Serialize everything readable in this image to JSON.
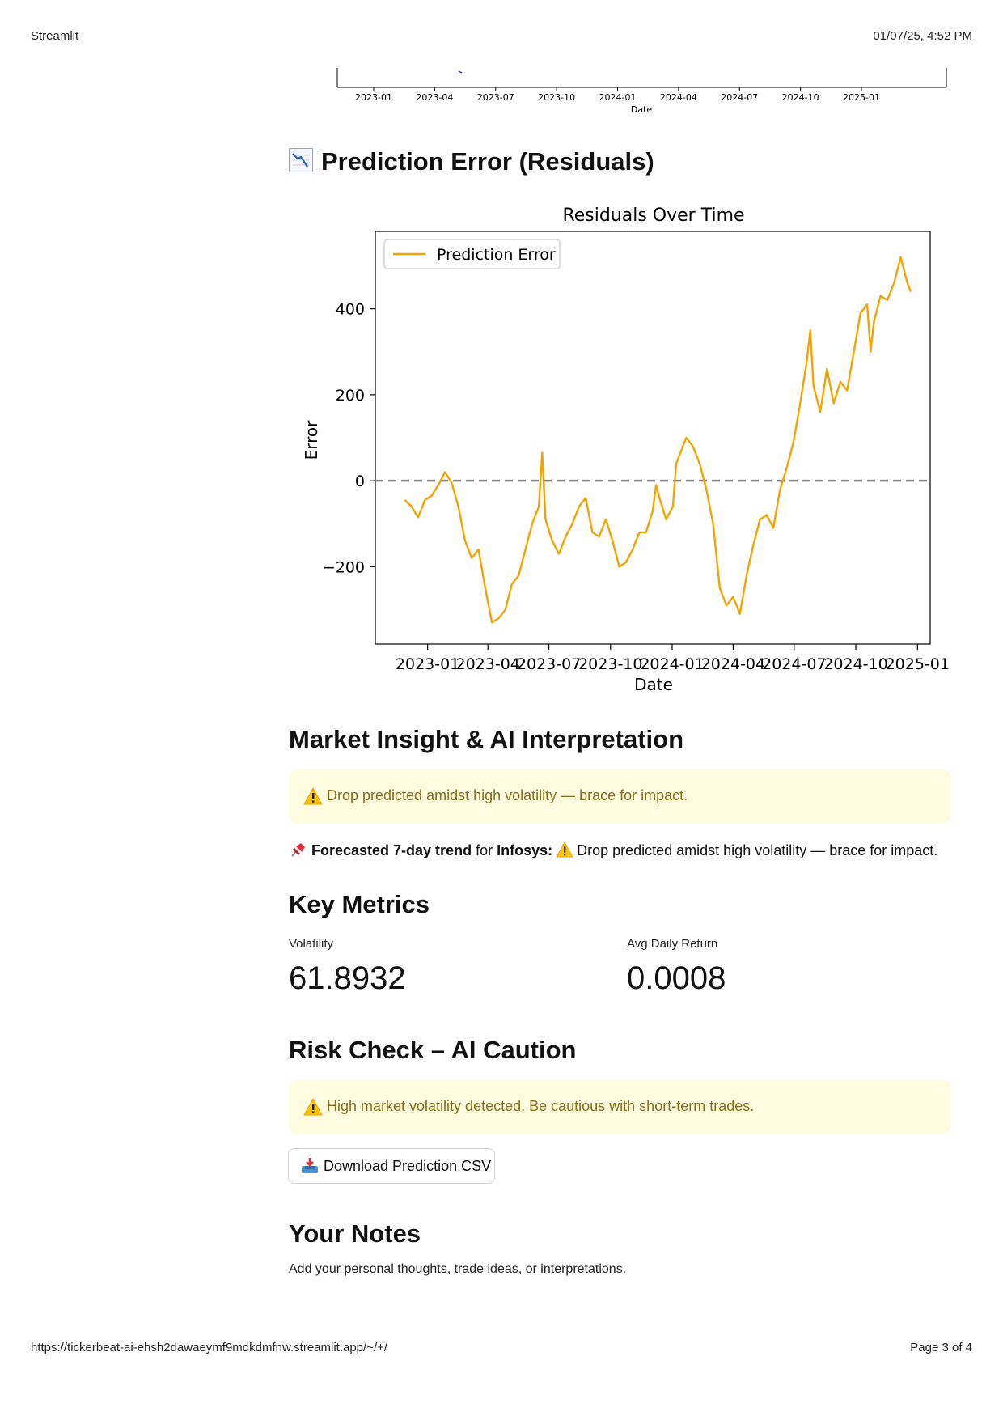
{
  "print_header": {
    "app_title": "Streamlit",
    "timestamp": "01/07/25, 4:52 PM"
  },
  "print_footer": {
    "url": "https://tickerbeat-ai-ehsh2dawaeymf9mdkdmfnw.streamlit.app/~/+/",
    "page": "Page 3 of 4"
  },
  "top_chart": {
    "xticks": [
      "2023-01",
      "2023-04",
      "2023-07",
      "2023-10",
      "2024-01",
      "2024-04",
      "2024-07",
      "2024-10",
      "2025-01"
    ],
    "xlabel": "Date"
  },
  "residuals_section": {
    "heading": "Prediction Error (Residuals)",
    "icon": "chart-decreasing-icon"
  },
  "chart_data": {
    "type": "line",
    "title": "Residuals Over Time",
    "xlabel": "Date",
    "ylabel": "Error",
    "xticks": [
      "2023-01",
      "2023-04",
      "2023-07",
      "2023-10",
      "2024-01",
      "2024-04",
      "2024-07",
      "2024-10",
      "2025-01"
    ],
    "yticks": [
      "400",
      "200",
      "0",
      "−200"
    ],
    "ylim": [
      -380,
      580
    ],
    "grid": false,
    "legend": "top-left",
    "reference_line": {
      "y": 0,
      "style": "dashed",
      "color": "#808080"
    },
    "series": [
      {
        "name": "Prediction Error",
        "color": "#f5a300",
        "x": [
          "2022-11-28",
          "2022-12-08",
          "2022-12-18",
          "2022-12-28",
          "2023-01-07",
          "2023-01-17",
          "2023-01-27",
          "2023-02-06",
          "2023-02-16",
          "2023-02-26",
          "2023-03-08",
          "2023-03-18",
          "2023-03-28",
          "2023-04-07",
          "2023-04-17",
          "2023-04-27",
          "2023-05-07",
          "2023-05-17",
          "2023-05-27",
          "2023-06-06",
          "2023-06-16",
          "2023-06-21",
          "2023-06-26",
          "2023-07-06",
          "2023-07-16",
          "2023-07-26",
          "2023-08-05",
          "2023-08-15",
          "2023-08-25",
          "2023-09-04",
          "2023-09-14",
          "2023-09-24",
          "2023-10-04",
          "2023-10-14",
          "2023-10-24",
          "2023-11-03",
          "2023-11-13",
          "2023-11-23",
          "2023-12-03",
          "2023-12-08",
          "2023-12-13",
          "2023-12-23",
          "2024-01-02",
          "2024-01-07",
          "2024-01-12",
          "2024-01-22",
          "2024-02-01",
          "2024-02-11",
          "2024-02-21",
          "2024-03-02",
          "2024-03-12",
          "2024-03-22",
          "2024-04-01",
          "2024-04-11",
          "2024-04-21",
          "2024-05-01",
          "2024-05-11",
          "2024-05-21",
          "2024-05-31",
          "2024-06-10",
          "2024-06-20",
          "2024-06-30",
          "2024-07-10",
          "2024-07-20",
          "2024-07-25",
          "2024-07-30",
          "2024-08-09",
          "2024-08-19",
          "2024-08-29",
          "2024-09-08",
          "2024-09-18",
          "2024-09-28",
          "2024-10-08",
          "2024-10-18",
          "2024-10-23",
          "2024-10-28",
          "2024-11-07",
          "2024-11-17",
          "2024-11-27",
          "2024-12-07",
          "2024-12-17",
          "2024-12-22"
        ],
        "values": [
          -45,
          -60,
          -85,
          -45,
          -35,
          -10,
          20,
          -5,
          -60,
          -140,
          -180,
          -160,
          -250,
          -330,
          -320,
          -300,
          -240,
          -220,
          -160,
          -100,
          -60,
          65,
          -90,
          -140,
          -170,
          -130,
          -100,
          -60,
          -40,
          -120,
          -130,
          -90,
          -140,
          -200,
          -190,
          -160,
          -120,
          -120,
          -70,
          -10,
          -40,
          -90,
          -60,
          40,
          60,
          100,
          80,
          40,
          -20,
          -100,
          -250,
          -290,
          -270,
          -310,
          -220,
          -150,
          -90,
          -80,
          -110,
          -20,
          30,
          90,
          180,
          280,
          350,
          220,
          160,
          260,
          180,
          230,
          210,
          300,
          390,
          410,
          300,
          370,
          430,
          420,
          460,
          520,
          460,
          440
        ]
      }
    ]
  },
  "insight_section": {
    "heading": "Market Insight & AI Interpretation",
    "alert_text": "Drop predicted amidst high volatility — brace for impact.",
    "trend_prefix": "Forecasted 7-day trend",
    "trend_for": " for ",
    "ticker": "Infosys:",
    "trend_text": "Drop predicted amidst high volatility — brace for impact."
  },
  "metrics_section": {
    "heading": "Key Metrics",
    "volatility_label": "Volatility",
    "volatility_value": "61.8932",
    "avg_return_label": "Avg Daily Return",
    "avg_return_value": "0.0008"
  },
  "risk_section": {
    "heading": "Risk Check – AI Caution",
    "alert_text": "High market volatility detected. Be cautious with short-term trades."
  },
  "download_button": {
    "label": "Download Prediction CSV",
    "icon": "inbox-tray-icon"
  },
  "notes_section": {
    "heading": "Your Notes",
    "caption": "Add your personal thoughts, trade ideas, or interpretations."
  },
  "colors": {
    "line": "#f5a300",
    "alert_bg": "#fffbe0",
    "alert_text": "#8a6d14",
    "zero_line": "#808080"
  }
}
